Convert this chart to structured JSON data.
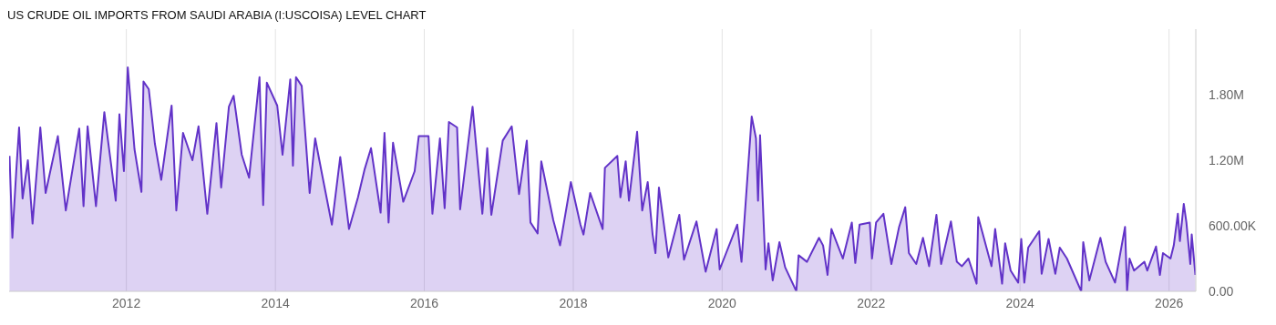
{
  "chart_data": {
    "type": "area",
    "title": "US CRUDE OIL IMPORTS FROM SAUDI ARABIA (I:USCOISA) LEVEL CHART",
    "xlim": [
      "2010-06-05",
      "2026-05-12"
    ],
    "xticks": [
      "2012",
      "2014",
      "2016",
      "2018",
      "2020",
      "2022",
      "2024",
      "2026"
    ],
    "ylim": [
      0,
      2400000
    ],
    "yticks": [
      {
        "value": 0,
        "label": "0.00"
      },
      {
        "value": 600000,
        "label": "600.00K"
      },
      {
        "value": 1200000,
        "label": "1.20M"
      },
      {
        "value": 1800000,
        "label": "1.80M"
      }
    ],
    "grid": true,
    "series": [
      {
        "color": "#6233c8",
        "x": [
          "2010-06-07",
          "2010-06-21",
          "2010-07-10",
          "2010-07-24",
          "2010-08-10",
          "2010-09-05",
          "2010-09-28",
          "2010-11-05",
          "2010-12-01",
          "2011-01-30",
          "2011-03-10",
          "2011-05-15",
          "2011-06-05",
          "2011-06-25",
          "2011-08-05",
          "2011-09-15",
          "2011-11-10",
          "2011-11-28",
          "2011-12-20",
          "2012-01-08",
          "2012-02-10",
          "2012-03-15",
          "2012-03-25",
          "2012-04-20",
          "2012-05-20",
          "2012-06-20",
          "2012-08-10",
          "2012-09-02",
          "2012-10-05",
          "2012-11-20",
          "2012-12-20",
          "2013-02-01",
          "2013-03-18",
          "2013-04-10",
          "2013-05-18",
          "2013-06-10",
          "2013-07-20",
          "2013-08-25",
          "2013-10-15",
          "2013-11-02",
          "2013-11-20",
          "2014-01-10",
          "2014-02-05",
          "2014-03-15",
          "2014-03-28",
          "2014-04-12",
          "2014-05-10",
          "2014-06-18",
          "2014-07-15",
          "2014-08-20",
          "2014-10-05",
          "2014-11-15",
          "2014-12-28",
          "2015-02-10",
          "2015-03-15",
          "2015-04-15",
          "2015-06-01",
          "2015-06-20",
          "2015-07-10",
          "2015-08-01",
          "2015-09-20",
          "2015-11-15",
          "2015-12-05",
          "2016-01-22",
          "2016-02-10",
          "2016-03-18",
          "2016-04-10",
          "2016-05-01",
          "2016-06-10",
          "2016-06-25",
          "2016-08-25",
          "2016-10-12",
          "2016-11-05",
          "2016-11-25",
          "2017-01-20",
          "2017-03-05",
          "2017-04-10",
          "2017-05-18",
          "2017-06-05",
          "2017-07-10",
          "2017-07-28",
          "2017-09-25",
          "2017-10-28",
          "2017-12-20",
          "2018-02-05",
          "2018-02-20",
          "2018-03-25",
          "2018-05-25",
          "2018-06-05",
          "2018-08-05",
          "2018-08-20",
          "2018-09-15",
          "2018-10-01",
          "2018-11-10",
          "2018-12-05",
          "2019-01-01",
          "2019-01-25",
          "2019-02-08",
          "2019-02-25",
          "2019-04-12",
          "2019-06-05",
          "2019-06-28",
          "2019-08-28",
          "2019-10-12",
          "2019-12-05",
          "2019-12-20",
          "2020-03-15",
          "2020-04-05",
          "2020-05-25",
          "2020-06-15",
          "2020-06-25",
          "2020-07-05",
          "2020-08-01",
          "2020-08-15",
          "2020-09-05",
          "2020-10-08",
          "2020-11-05",
          "2020-12-30",
          "2021-01-10",
          "2021-02-20",
          "2021-04-20",
          "2021-05-10",
          "2021-06-01",
          "2021-06-20",
          "2021-08-15",
          "2021-09-28",
          "2021-10-15",
          "2021-11-05",
          "2021-12-25",
          "2022-01-05",
          "2022-01-25",
          "2022-03-02",
          "2022-04-10",
          "2022-05-18",
          "2022-06-17",
          "2022-07-05",
          "2022-08-10",
          "2022-09-12",
          "2022-10-12",
          "2022-11-17",
          "2022-12-10",
          "2023-01-27",
          "2023-02-25",
          "2023-03-22",
          "2023-04-23",
          "2023-06-02",
          "2023-06-10",
          "2023-08-14",
          "2023-09-01",
          "2023-10-05",
          "2023-10-20",
          "2023-11-16",
          "2023-12-23",
          "2024-01-07",
          "2024-01-22",
          "2024-02-10",
          "2024-04-04",
          "2024-04-16",
          "2024-05-20",
          "2024-06-22",
          "2024-07-14",
          "2024-08-18",
          "2024-10-27",
          "2024-11-06",
          "2024-12-06",
          "2025-01-29",
          "2025-02-24",
          "2025-04-11",
          "2025-05-30",
          "2025-06-09",
          "2025-06-21",
          "2025-07-13",
          "2025-09-02",
          "2025-09-16",
          "2025-10-29",
          "2025-11-17",
          "2025-12-02",
          "2026-01-08",
          "2026-01-24",
          "2026-02-13",
          "2026-02-23",
          "2026-03-14",
          "2026-03-27",
          "2026-04-15",
          "2026-04-22",
          "2026-05-10"
        ],
        "values": [
          1240000,
          490000,
          1100000,
          1500000,
          850000,
          1200000,
          620000,
          1500000,
          900000,
          1420000,
          740000,
          1490000,
          780000,
          1510000,
          780000,
          1640000,
          830000,
          1620000,
          1100000,
          2050000,
          1300000,
          910000,
          1920000,
          1850000,
          1350000,
          1020000,
          1700000,
          740000,
          1450000,
          1200000,
          1510000,
          710000,
          1540000,
          950000,
          1690000,
          1790000,
          1250000,
          1040000,
          1960000,
          790000,
          1910000,
          1700000,
          1250000,
          1940000,
          1150000,
          1960000,
          1880000,
          900000,
          1400000,
          1050000,
          610000,
          1230000,
          570000,
          860000,
          1120000,
          1310000,
          720000,
          1450000,
          630000,
          1360000,
          820000,
          1100000,
          1420000,
          1420000,
          710000,
          1400000,
          760000,
          1550000,
          1500000,
          750000,
          1690000,
          710000,
          1310000,
          700000,
          1380000,
          1510000,
          890000,
          1380000,
          630000,
          530000,
          1190000,
          650000,
          420000,
          1000000,
          610000,
          520000,
          900000,
          570000,
          1130000,
          1240000,
          860000,
          1190000,
          830000,
          1460000,
          740000,
          1000000,
          520000,
          350000,
          950000,
          310000,
          700000,
          290000,
          640000,
          180000,
          570000,
          200000,
          610000,
          270000,
          1600000,
          1400000,
          830000,
          1430000,
          200000,
          440000,
          100000,
          450000,
          220000,
          0,
          330000,
          270000,
          490000,
          420000,
          150000,
          570000,
          300000,
          630000,
          260000,
          610000,
          630000,
          300000,
          630000,
          710000,
          250000,
          590000,
          770000,
          350000,
          250000,
          490000,
          230000,
          700000,
          250000,
          640000,
          270000,
          230000,
          300000,
          70000,
          680000,
          230000,
          570000,
          70000,
          440000,
          190000,
          80000,
          480000,
          80000,
          400000,
          550000,
          160000,
          480000,
          160000,
          400000,
          300000,
          0,
          450000,
          100000,
          490000,
          270000,
          80000,
          590000,
          0,
          300000,
          190000,
          270000,
          190000,
          410000,
          150000,
          350000,
          300000,
          420000,
          710000,
          460000,
          800000,
          630000,
          250000,
          520000,
          150000
        ]
      }
    ]
  }
}
